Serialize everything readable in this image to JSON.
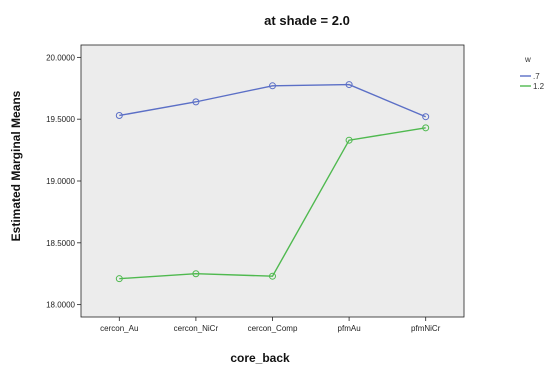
{
  "chart_data": {
    "type": "line",
    "title": "at shade = 2.0",
    "xlabel": "core_back",
    "ylabel": "Estimated Marginal Means",
    "categories": [
      "cercon_Au",
      "cercon_NiCr",
      "cercon_Comp",
      "pfmAu",
      "pfmNiCr"
    ],
    "ylim": [
      17.9,
      20.1
    ],
    "yticks": [
      18.0,
      18.5,
      19.0,
      19.5,
      20.0
    ],
    "ytick_labels": [
      "18.0000",
      "18.5000",
      "19.0000",
      "19.5000",
      "20.0000"
    ],
    "grid": false,
    "legend_title": "w",
    "legend_position": "top-right outside",
    "plot_background": "#ececec",
    "series": [
      {
        "name": ".7",
        "color": "#5b6fc6",
        "values": [
          19.53,
          19.64,
          19.77,
          19.78,
          19.52
        ]
      },
      {
        "name": "1.2",
        "color": "#4fb94f",
        "values": [
          18.21,
          18.25,
          18.23,
          19.33,
          19.43
        ]
      }
    ]
  }
}
